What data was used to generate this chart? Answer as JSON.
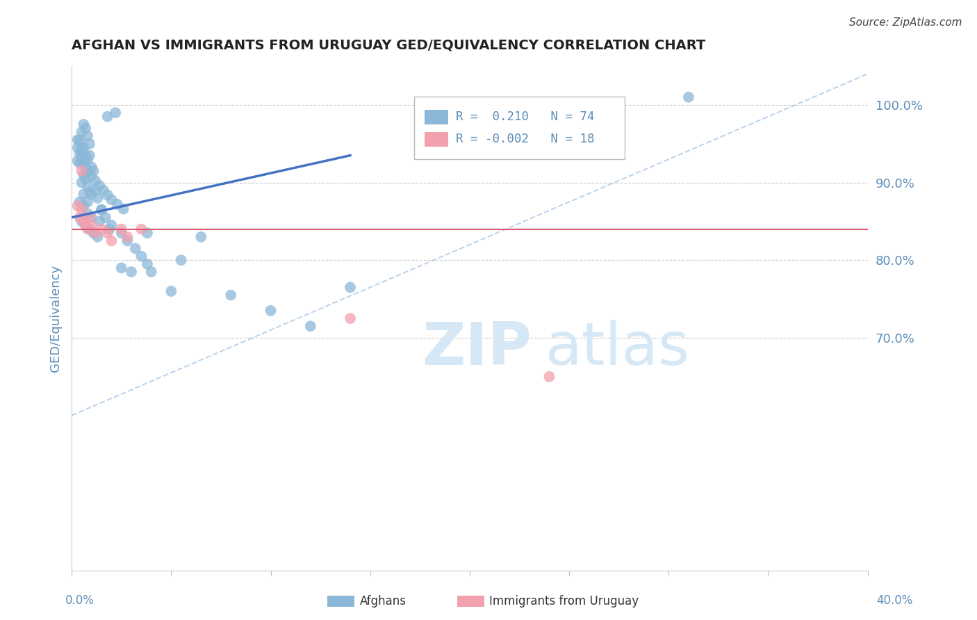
{
  "title": "AFGHAN VS IMMIGRANTS FROM URUGUAY GED/EQUIVALENCY CORRELATION CHART",
  "source": "Source: ZipAtlas.com",
  "ylabel": "GED/Equivalency",
  "xmin": 0.0,
  "xmax": 40.0,
  "ymin": 40.0,
  "ymax": 105.0,
  "yticks": [
    70.0,
    80.0,
    90.0,
    100.0
  ],
  "xticks": [
    0.0,
    5.0,
    10.0,
    15.0,
    20.0,
    25.0,
    30.0,
    35.0,
    40.0
  ],
  "blue_color": "#8BB8D8",
  "pink_color": "#F2A0AD",
  "trend_blue": "#4472C4",
  "trend_blue_dash": "#9DC3E6",
  "trend_pink": "#E05870",
  "background": "#FFFFFF",
  "grid_color": "#CCCCCC",
  "axis_color": "#5B8DB8",
  "watermark_color": "#D6E8F5",
  "afghans_x": [
    1.8,
    2.2,
    0.6,
    0.7,
    0.5,
    0.8,
    0.4,
    0.9,
    0.6,
    0.5,
    0.7,
    0.8,
    0.3,
    0.4,
    1.0,
    1.1,
    0.6,
    0.7,
    0.5,
    0.8,
    1.2,
    0.9,
    1.0,
    1.3,
    0.4,
    0.6,
    1.5,
    0.8,
    1.0,
    0.5,
    0.7,
    0.9,
    1.1,
    1.3,
    0.6,
    0.8,
    1.5,
    1.7,
    2.0,
    2.5,
    2.8,
    3.2,
    3.5,
    3.8,
    4.0,
    5.0,
    0.3,
    0.4,
    0.5,
    0.6,
    0.7,
    0.8,
    1.0,
    1.2,
    1.4,
    1.6,
    1.8,
    2.0,
    2.3,
    2.6,
    6.5,
    0.3,
    0.5,
    0.9,
    1.4,
    1.9,
    2.5,
    3.0,
    3.8,
    5.5,
    8.0,
    10.0,
    12.0,
    14.0,
    31.0
  ],
  "afghans_y": [
    98.5,
    99.0,
    97.5,
    97.0,
    96.5,
    96.0,
    95.5,
    95.0,
    94.5,
    94.0,
    93.5,
    93.0,
    92.8,
    92.5,
    92.0,
    91.5,
    91.0,
    90.5,
    90.0,
    89.5,
    89.0,
    88.8,
    88.5,
    88.0,
    87.5,
    87.0,
    86.5,
    86.0,
    85.5,
    85.0,
    84.5,
    84.0,
    83.5,
    83.0,
    88.5,
    87.5,
    86.5,
    85.5,
    84.5,
    83.5,
    82.5,
    81.5,
    80.5,
    79.5,
    78.5,
    76.0,
    94.5,
    93.8,
    93.2,
    92.6,
    92.0,
    91.4,
    90.8,
    90.2,
    89.6,
    89.0,
    88.4,
    87.8,
    87.2,
    86.6,
    83.0,
    95.5,
    94.5,
    93.5,
    85.0,
    84.0,
    79.0,
    78.5,
    83.5,
    80.0,
    75.5,
    73.5,
    71.5,
    76.5,
    101.0
  ],
  "uruguay_x": [
    0.3,
    0.5,
    0.4,
    0.6,
    0.7,
    0.8,
    0.9,
    1.0,
    1.2,
    1.5,
    1.8,
    2.0,
    2.5,
    2.8,
    0.5,
    3.5,
    14.0,
    24.0
  ],
  "uruguay_y": [
    87.0,
    86.5,
    85.5,
    85.0,
    84.5,
    84.0,
    85.5,
    84.5,
    83.5,
    84.0,
    83.5,
    82.5,
    84.0,
    83.0,
    91.5,
    84.0,
    72.5,
    65.0
  ],
  "trend_blue_x0": 0.0,
  "trend_blue_y0": 85.5,
  "trend_blue_x1": 14.0,
  "trend_blue_y1": 93.5,
  "trend_blue_dash_x0": 0.0,
  "trend_blue_dash_y0": 60.0,
  "trend_blue_dash_x1": 40.0,
  "trend_blue_dash_y1": 104.0,
  "trend_pink_y": 84.0
}
